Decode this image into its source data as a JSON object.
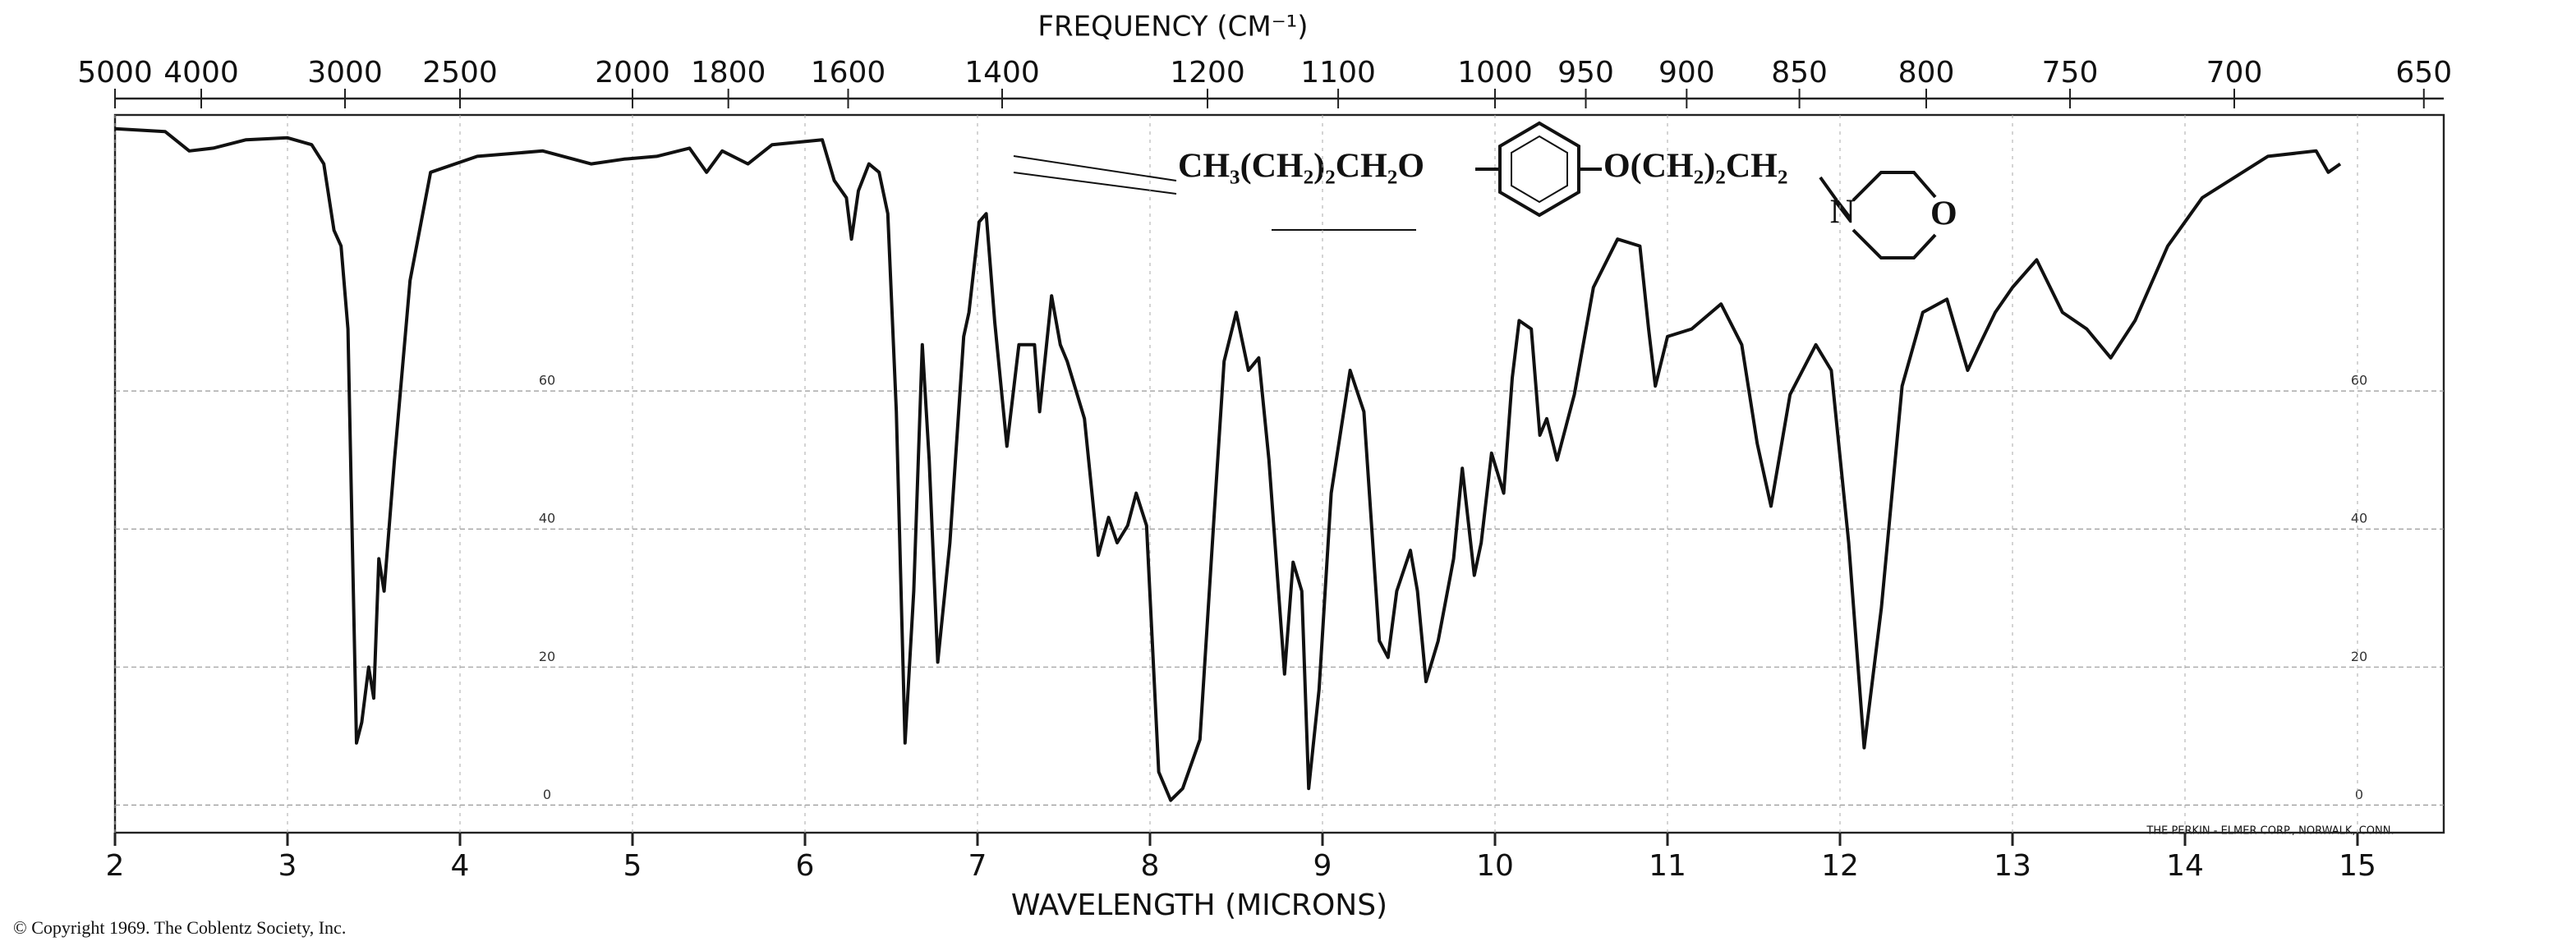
{
  "chart_data": {
    "type": "line",
    "title": "FREQUENCY (CM⁻¹)",
    "xlabel": "WAVELENGTH (MICRONS)",
    "color": "#111111",
    "grid": true,
    "xlim": [
      2,
      15.5
    ],
    "ylim": [
      -4,
      100
    ],
    "xticks": [
      2,
      3,
      4,
      5,
      6,
      7,
      8,
      9,
      10,
      11,
      12,
      13,
      14,
      15
    ],
    "yticks": [
      0,
      20,
      40,
      60
    ],
    "x2ticks": [
      5000,
      4000,
      3000,
      2500,
      2000,
      1800,
      1600,
      1400,
      1200,
      1100,
      1000,
      950,
      900,
      850,
      800,
      750,
      700,
      650
    ],
    "x": [
      2.0,
      2.29,
      2.43,
      2.57,
      2.76,
      3.0,
      3.14,
      3.21,
      3.27,
      3.31,
      3.35,
      3.38,
      3.4,
      3.43,
      3.47,
      3.5,
      3.53,
      3.56,
      3.62,
      3.71,
      3.83,
      4.1,
      4.48,
      4.76,
      4.95,
      5.14,
      5.33,
      5.43,
      5.52,
      5.67,
      5.81,
      6.1,
      6.17,
      6.24,
      6.27,
      6.31,
      6.37,
      6.43,
      6.48,
      6.53,
      6.58,
      6.63,
      6.68,
      6.72,
      6.77,
      6.84,
      6.92,
      6.95,
      7.01,
      7.05,
      7.1,
      7.17,
      7.24,
      7.33,
      7.36,
      7.43,
      7.48,
      7.52,
      7.62,
      7.7,
      7.76,
      7.81,
      7.87,
      7.92,
      7.98,
      8.05,
      8.12,
      8.19,
      8.29,
      8.38,
      8.43,
      8.5,
      8.57,
      8.63,
      8.69,
      8.78,
      8.83,
      8.88,
      8.92,
      8.98,
      9.05,
      9.16,
      9.24,
      9.33,
      9.38,
      9.43,
      9.51,
      9.55,
      9.6,
      9.67,
      9.76,
      9.81,
      9.88,
      9.92,
      9.98,
      10.05,
      10.1,
      10.14,
      10.21,
      10.26,
      10.3,
      10.36,
      10.46,
      10.57,
      10.71,
      10.84,
      10.89,
      10.93,
      11.0,
      11.14,
      11.31,
      11.43,
      11.52,
      11.6,
      11.71,
      11.86,
      11.95,
      12.05,
      12.14,
      12.24,
      12.36,
      12.48,
      12.62,
      12.74,
      12.81,
      12.9,
      13.0,
      13.14,
      13.29,
      13.43,
      13.57,
      13.71,
      13.9,
      14.1,
      14.48,
      14.76,
      14.83,
      14.9
    ],
    "values": [
      98,
      97.6,
      94.8,
      95.2,
      96.4,
      96.7,
      95.7,
      92.9,
      83.3,
      81,
      69,
      33,
      9,
      12,
      20,
      15.5,
      35.7,
      31,
      50,
      76,
      91.7,
      94,
      94.8,
      92.9,
      93.6,
      94,
      95.2,
      91.7,
      94.8,
      92.9,
      95.7,
      96.4,
      90.5,
      88,
      82,
      89,
      92.9,
      91.7,
      85.7,
      57,
      9,
      31,
      66.7,
      50,
      20.7,
      38,
      67.9,
      71.4,
      84.5,
      85.7,
      70,
      52,
      66.7,
      66.7,
      57,
      73.8,
      66.7,
      64.3,
      56,
      36.2,
      41.7,
      38,
      40.5,
      45.2,
      40.5,
      4.8,
      0.7,
      2.4,
      9.5,
      45.2,
      64.3,
      71.4,
      63,
      64.8,
      50,
      19,
      35.2,
      31,
      2.4,
      16.7,
      45.2,
      63,
      57,
      23.8,
      21.4,
      31,
      36.9,
      31,
      17.9,
      23.8,
      35.7,
      48.8,
      33.3,
      38,
      51,
      45.2,
      61.9,
      70.2,
      69,
      53.6,
      56,
      50,
      59.5,
      75,
      82,
      81,
      69,
      60.7,
      67.9,
      69,
      72.6,
      66.7,
      52.4,
      43.3,
      59.5,
      66.7,
      63,
      38,
      8.3,
      28.6,
      60.7,
      71.4,
      73.3,
      63,
      66.7,
      71.4,
      75,
      79,
      71.4,
      69,
      64.8,
      70.2,
      81,
      88,
      94,
      94.8,
      91.7,
      92.9
    ],
    "annotations": {
      "structure_left": "CH₃(CH₂)₂CH₂O",
      "structure_right": "O(CH₂)₂CH₂",
      "structure_n": "N",
      "structure_o": "O",
      "copyright": "© Copyright 1969. The Coblentz Society, Inc.",
      "maker": "THE PERKIN - ELMER CORP., NORWALK, CONN."
    }
  }
}
